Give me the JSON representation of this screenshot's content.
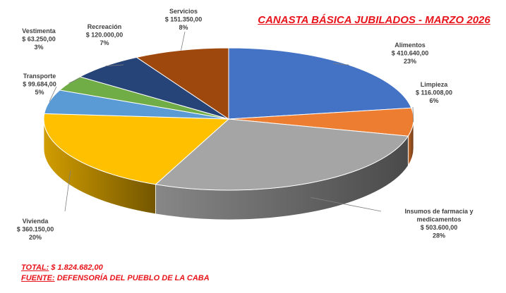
{
  "chart_data": {
    "type": "pie",
    "title": "CANASTA BÁSICA JUBILADOS - MARZO 2026",
    "slices": [
      {
        "label": "Alimentos",
        "value_text": "$ 410.640,00",
        "value": 410640.0,
        "percent_text": "23%",
        "color": "#4472c4"
      },
      {
        "label": "Limpieza",
        "value_text": "$ 116.008,00",
        "value": 116008.0,
        "percent_text": "6%",
        "color": "#ed7d31"
      },
      {
        "label": "Insumos de farmacia y medicamentos",
        "value_text": "$ 503.600,00",
        "value": 503600.0,
        "percent_text": "28%",
        "color": "#a5a5a5"
      },
      {
        "label": "Vivienda",
        "value_text": "$ 360.150,00",
        "value": 360150.0,
        "percent_text": "20%",
        "color": "#ffc000"
      },
      {
        "label": "Transporte",
        "value_text": "$ 99.684,00",
        "value": 99684.0,
        "percent_text": "5%",
        "color": "#5b9bd5"
      },
      {
        "label": "Vestimenta",
        "value_text": "$ 63.250,00",
        "value": 63250.0,
        "percent_text": "3%",
        "color": "#70ad47"
      },
      {
        "label": "Recreación",
        "value_text": "$ 120.000,00",
        "value": 120000.0,
        "percent_text": "7%",
        "color": "#264478"
      },
      {
        "label": "Servicios",
        "value_text": "$ 151.350,00",
        "value": 151350.0,
        "percent_text": "8%",
        "color": "#9e480e"
      }
    ]
  },
  "footer": {
    "total_key": "TOTAL:",
    "total_value": "$ 1.824.682,00",
    "source_key": "FUENTE:",
    "source_value": "DEFENSORÍA DEL PUEBLO DE LA CABA"
  }
}
